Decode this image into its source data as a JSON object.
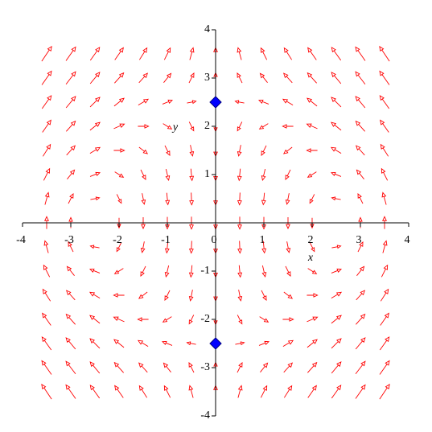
{
  "chart_data": {
    "type": "vector_field",
    "xlabel": "x",
    "ylabel": "y",
    "color": "#ff0000",
    "xlim": [
      -4,
      4
    ],
    "ylim": [
      -4,
      4
    ],
    "xticks": [
      -4,
      -3,
      -2,
      -1,
      0,
      1,
      2,
      3,
      4
    ],
    "yticks": [
      -4,
      -3,
      -2,
      -1,
      1,
      2,
      3,
      4
    ],
    "x": [
      -3.5,
      -3,
      -2.5,
      -2,
      -1.5,
      -1,
      -0.5,
      0,
      0.5,
      1,
      1.5,
      2,
      2.5,
      3,
      3.5
    ],
    "y": [
      3.5,
      3,
      2.5,
      2,
      1.5,
      1,
      0.5,
      0,
      -0.5,
      -1,
      -1.5,
      -2,
      -2.5,
      -3,
      -3.5
    ],
    "u": [
      [
        12.25,
        10.5,
        8.75,
        7,
        5.25,
        3.5,
        1.75,
        0,
        -1.75,
        -3.5,
        -5.25,
        -7,
        -8.75,
        -10.5,
        -12.25
      ],
      [
        10.5,
        9,
        7.5,
        6,
        4.5,
        3,
        1.5,
        0,
        -1.5,
        -3,
        -4.5,
        -6,
        -7.5,
        -9,
        -10.5
      ],
      [
        8.75,
        7.5,
        6.25,
        5,
        3.75,
        2.5,
        1.25,
        0,
        -1.25,
        -2.5,
        -3.75,
        -5,
        -6.25,
        -7.5,
        -8.75
      ],
      [
        7,
        6,
        5,
        4,
        3,
        2,
        1,
        0,
        -1,
        -2,
        -3,
        -4,
        -5,
        -6,
        -7
      ],
      [
        5.25,
        4.5,
        3.75,
        3,
        2.25,
        1.5,
        0.75,
        0,
        -0.75,
        -1.5,
        -2.25,
        -3,
        -3.75,
        -4.5,
        -5.25
      ],
      [
        3.5,
        3,
        2.5,
        2,
        1.5,
        1,
        0.5,
        0,
        -0.5,
        -1,
        -1.5,
        -2,
        -2.5,
        -3,
        -3.5
      ],
      [
        1.75,
        1.5,
        1.25,
        1,
        0.75,
        0.5,
        0.25,
        0,
        -0.25,
        -0.5,
        -0.75,
        -1,
        -1.25,
        -1.5,
        -1.75
      ],
      [
        0,
        0,
        0,
        0,
        0,
        0,
        0,
        0,
        0,
        0,
        0,
        0,
        0,
        0,
        0
      ],
      [
        -1.75,
        -1.5,
        -1.25,
        -1,
        -0.75,
        -0.5,
        -0.25,
        0,
        0.25,
        0.5,
        0.75,
        1,
        1.25,
        1.5,
        1.75
      ],
      [
        -3.5,
        -3,
        -2.5,
        -2,
        -1.5,
        -1,
        -0.5,
        0,
        0.5,
        1,
        1.5,
        2,
        2.5,
        3,
        3.5
      ],
      [
        -5.25,
        -4.5,
        -3.75,
        -3,
        -2.25,
        -1.5,
        -0.75,
        0,
        0.75,
        1.5,
        2.25,
        3,
        3.75,
        4.5,
        5.25
      ],
      [
        -7,
        -6,
        -5,
        -4,
        -3,
        -2,
        -1,
        0,
        1,
        2,
        3,
        4,
        5,
        6,
        7
      ],
      [
        -8.75,
        -7.5,
        -6.25,
        -5,
        -3.75,
        -2.5,
        -1.25,
        0,
        1.25,
        2.5,
        3.75,
        5,
        6.25,
        7.5,
        8.75
      ],
      [
        -10.5,
        -9,
        -7.5,
        -6,
        -4.5,
        -3,
        -1.5,
        0,
        1.5,
        3,
        4.5,
        6,
        7.5,
        9,
        10.5
      ],
      [
        -12.25,
        -10.5,
        -8.75,
        -7,
        -5.25,
        -3.5,
        -1.75,
        0,
        1.75,
        3.5,
        5.25,
        7,
        8.75,
        10.5,
        12.25
      ]
    ],
    "v": [
      [
        18.25,
        15,
        12.25,
        10,
        8.25,
        7,
        6.25,
        6,
        6.25,
        7,
        8.25,
        10,
        12.25,
        15,
        18.25
      ],
      [
        15,
        11.75,
        9,
        6.75,
        5,
        3.75,
        3,
        2.75,
        3,
        3.75,
        5,
        6.75,
        9,
        11.75,
        15
      ],
      [
        12.25,
        9,
        6.25,
        4,
        2.25,
        1,
        0.25,
        0,
        0.25,
        1,
        2.25,
        4,
        6.25,
        9,
        12.25
      ],
      [
        10,
        6.75,
        4,
        1.75,
        0,
        -1.25,
        -2,
        -2.25,
        -2,
        -1.25,
        0,
        1.75,
        4,
        6.75,
        10
      ],
      [
        8.25,
        5,
        2.25,
        0,
        -1.75,
        -3,
        -3.75,
        -4,
        -3.75,
        -3,
        -1.75,
        0,
        2.25,
        5,
        8.25
      ],
      [
        7,
        3.75,
        1,
        -1.25,
        -3,
        -4.25,
        -5,
        -5.25,
        -5,
        -4.25,
        -3,
        -1.25,
        1,
        3.75,
        7
      ],
      [
        6.25,
        3,
        0.25,
        -2,
        -3.75,
        -5,
        -5.75,
        -6,
        -5.75,
        -5,
        -3.75,
        -2,
        0.25,
        3,
        6.25
      ],
      [
        6,
        2.75,
        0,
        -2.25,
        -4,
        -5.25,
        -6,
        -6.25,
        -6,
        -5.25,
        -4,
        -2.25,
        0,
        2.75,
        6
      ],
      [
        6.25,
        3,
        0.25,
        -2,
        -3.75,
        -5,
        -5.75,
        -6,
        -5.75,
        -5,
        -3.75,
        -2,
        0.25,
        3,
        6.25
      ],
      [
        7,
        3.75,
        1,
        -1.25,
        -3,
        -4.25,
        -5,
        -5.25,
        -5,
        -4.25,
        -3,
        -1.25,
        1,
        3.75,
        7
      ],
      [
        8.25,
        5,
        2.25,
        0,
        -1.75,
        -3,
        -3.75,
        -4,
        -3.75,
        -3,
        -1.75,
        0,
        2.25,
        5,
        8.25
      ],
      [
        10,
        6.75,
        4,
        1.75,
        0,
        -1.25,
        -2,
        -2.25,
        -2,
        -1.25,
        0,
        1.75,
        4,
        6.75,
        10
      ],
      [
        12.25,
        9,
        6.25,
        4,
        2.25,
        1,
        0.25,
        0,
        0.25,
        1,
        2.25,
        4,
        6.25,
        9,
        12.25
      ],
      [
        15,
        11.75,
        9,
        6.75,
        5,
        3.75,
        3,
        2.75,
        3,
        3.75,
        5,
        6.75,
        9,
        11.75,
        15
      ],
      [
        18.25,
        15,
        12.25,
        10,
        8.25,
        7,
        6.25,
        6,
        6.25,
        7,
        8.25,
        10,
        12.25,
        15,
        18.25
      ]
    ],
    "points": {
      "x": [
        0,
        0
      ],
      "y": [
        2.5,
        -2.5
      ],
      "color": "#0000ff"
    }
  }
}
